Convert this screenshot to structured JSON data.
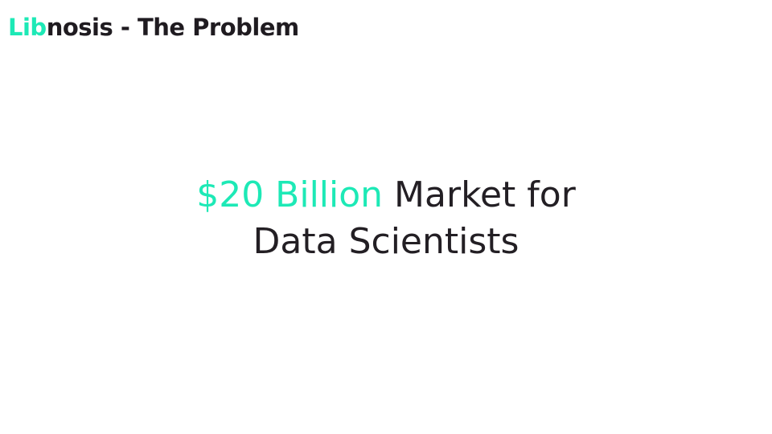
{
  "header": {
    "title_accent": "Lib",
    "title_rest": "nosis - The Problem"
  },
  "headline": {
    "accent": "$20 Billion",
    "line1_rest": " Market for",
    "line2": "Data Scientists"
  },
  "colors": {
    "accent": "#1de9b6",
    "text": "#231f24",
    "background": "#ffffff"
  }
}
